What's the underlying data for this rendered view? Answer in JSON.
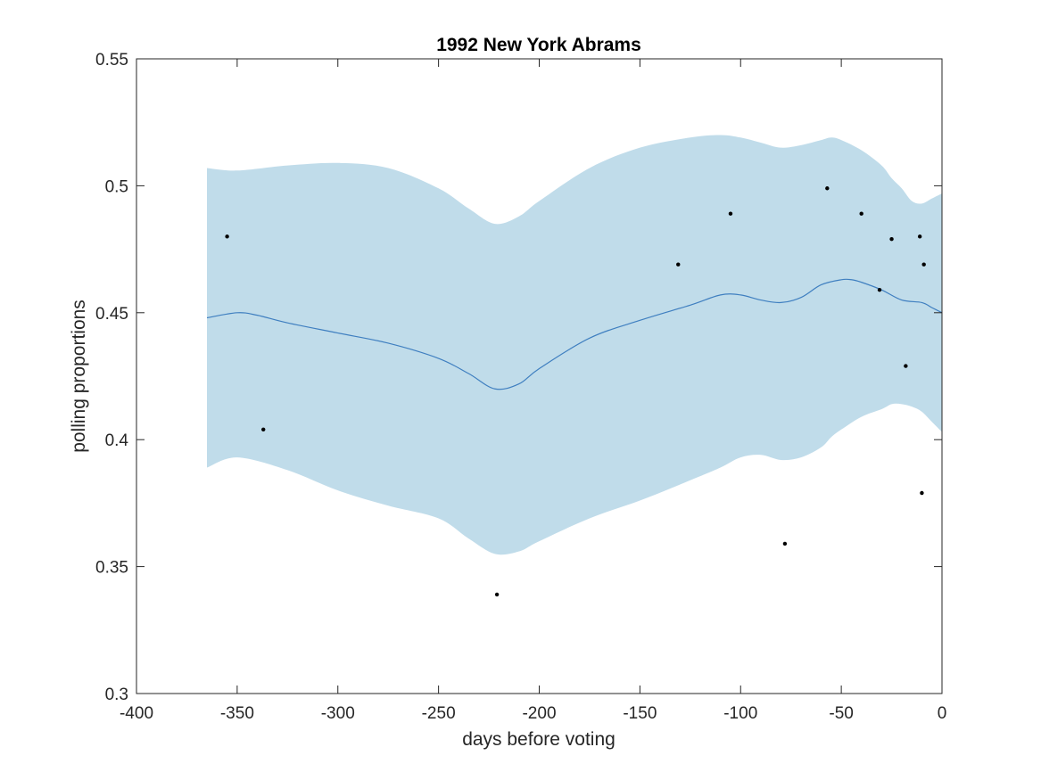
{
  "chart_data": {
    "type": "line",
    "title": "1992 New York Abrams",
    "xlabel": "days before voting",
    "ylabel": "polling proportions",
    "xlim": [
      -400,
      0
    ],
    "ylim": [
      0.3,
      0.55
    ],
    "xticks": [
      -400,
      -350,
      -300,
      -250,
      -200,
      -150,
      -100,
      -50,
      0
    ],
    "yticks": [
      0.3,
      0.35,
      0.4,
      0.45,
      0.5,
      0.55
    ],
    "xtick_labels": [
      "-400",
      "-350",
      "-300",
      "-250",
      "-200",
      "-150",
      "-100",
      "-50",
      "0"
    ],
    "ytick_labels": [
      "0.3",
      "0.35",
      "0.4",
      "0.45",
      "0.5",
      "0.55"
    ],
    "grid": false,
    "box": true,
    "colors": {
      "band": "#c0dcea",
      "mean_line": "#3f7fc0",
      "points": "#000000",
      "axes": "#262626"
    },
    "series": [
      {
        "kind": "band",
        "x": [
          -365,
          -350,
          -325,
          -300,
          -275,
          -250,
          -235,
          -222,
          -210,
          -200,
          -175,
          -150,
          -125,
          -110,
          -100,
          -90,
          -80,
          -70,
          -60,
          -55,
          -50,
          -40,
          -30,
          -25,
          -20,
          -15,
          -10,
          -5,
          0
        ],
        "upper": [
          0.507,
          0.506,
          0.508,
          0.509,
          0.507,
          0.499,
          0.491,
          0.485,
          0.488,
          0.494,
          0.507,
          0.515,
          0.519,
          0.52,
          0.519,
          0.517,
          0.515,
          0.516,
          0.518,
          0.519,
          0.518,
          0.514,
          0.508,
          0.503,
          0.499,
          0.494,
          0.493,
          0.495,
          0.497
        ],
        "lower": [
          0.389,
          0.393,
          0.388,
          0.38,
          0.374,
          0.369,
          0.361,
          0.355,
          0.356,
          0.36,
          0.369,
          0.376,
          0.384,
          0.389,
          0.393,
          0.394,
          0.392,
          0.393,
          0.397,
          0.401,
          0.404,
          0.409,
          0.412,
          0.414,
          0.414,
          0.413,
          0.411,
          0.407,
          0.403
        ]
      },
      {
        "kind": "line",
        "x": [
          -365,
          -350,
          -340,
          -325,
          -300,
          -275,
          -250,
          -235,
          -222,
          -210,
          -200,
          -175,
          -150,
          -125,
          -110,
          -100,
          -90,
          -80,
          -70,
          -60,
          -50,
          -45,
          -40,
          -30,
          -20,
          -10,
          -5,
          0
        ],
        "y": [
          0.448,
          0.45,
          0.449,
          0.446,
          0.442,
          0.438,
          0.432,
          0.426,
          0.42,
          0.422,
          0.428,
          0.44,
          0.447,
          0.453,
          0.457,
          0.457,
          0.455,
          0.454,
          0.456,
          0.461,
          0.463,
          0.463,
          0.462,
          0.459,
          0.455,
          0.454,
          0.452,
          0.45
        ]
      },
      {
        "kind": "scatter",
        "x": [
          -355,
          -337,
          -221,
          -131,
          -105,
          -78,
          -57,
          -40,
          -25,
          -31,
          -18,
          -11,
          -10,
          -9
        ],
        "y": [
          0.48,
          0.404,
          0.339,
          0.469,
          0.489,
          0.359,
          0.499,
          0.489,
          0.479,
          0.459,
          0.429,
          0.48,
          0.379,
          0.469
        ]
      }
    ]
  }
}
